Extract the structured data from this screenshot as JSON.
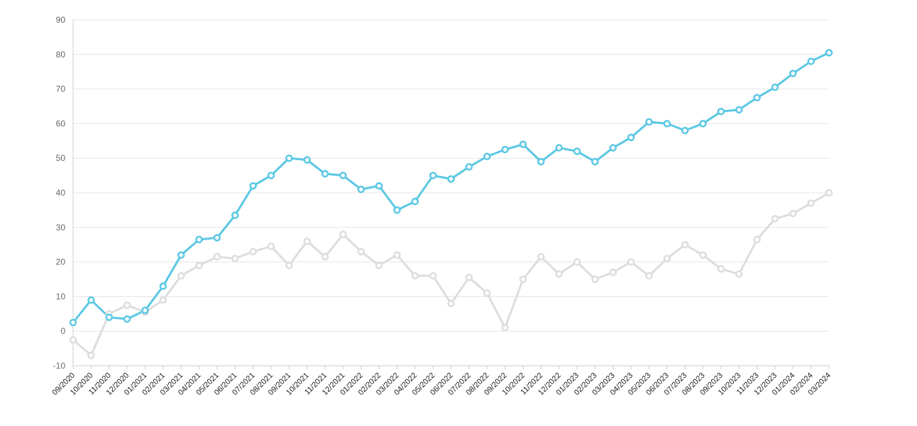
{
  "chart_data": {
    "type": "line",
    "title": "",
    "xlabel": "",
    "ylabel": "",
    "ylim": [
      -10,
      90
    ],
    "yticks": [
      -10,
      0,
      10,
      20,
      30,
      40,
      50,
      60,
      70,
      80,
      90
    ],
    "grid": true,
    "categories": [
      "09/2020",
      "10/2020",
      "11/2020",
      "12/2020",
      "01/2021",
      "02/2021",
      "03/2021",
      "04/2021",
      "05/2021",
      "06/2021",
      "07/2021",
      "08/2021",
      "09/2021",
      "10/2021",
      "11/2021",
      "12/2021",
      "01/2022",
      "02/2022",
      "03/2022",
      "04/2022",
      "05/2022",
      "06/2022",
      "07/2022",
      "08/2022",
      "09/2022",
      "10/2022",
      "11/2022",
      "12/2022",
      "01/2023",
      "02/2023",
      "03/2023",
      "04/2023",
      "05/2023",
      "06/2023",
      "07/2023",
      "08/2023",
      "09/2023",
      "10/2023",
      "11/2023",
      "12/2023",
      "01/2024",
      "02/2024",
      "03/2024"
    ],
    "series": [
      {
        "color": "#5bc8e3",
        "values": [
          2.5,
          9.0,
          4.0,
          3.5,
          6.0,
          13.0,
          22.0,
          26.5,
          27.0,
          33.5,
          42.0,
          45.0,
          50.0,
          49.5,
          45.5,
          45.0,
          41.0,
          42.0,
          35.0,
          37.5,
          45.0,
          44.0,
          47.5,
          50.5,
          52.5,
          54.0,
          49.0,
          53.0,
          52.0,
          49.0,
          53.0,
          56.0,
          60.5,
          60.0,
          58.0,
          60.0,
          63.5,
          64.0,
          67.5,
          70.5,
          74.5,
          78.0,
          80.5
        ]
      },
      {
        "color": "#dddddd",
        "values": [
          -2.5,
          -7.0,
          5.0,
          7.5,
          5.5,
          9.0,
          16.0,
          19.0,
          21.5,
          21.0,
          23.0,
          24.5,
          19.0,
          26.0,
          21.5,
          28.0,
          23.0,
          19.0,
          22.0,
          16.0,
          16.0,
          8.0,
          15.5,
          11.0,
          1.0,
          15.0,
          21.5,
          16.5,
          20.0,
          15.0,
          17.0,
          20.0,
          16.0,
          21.0,
          25.0,
          22.0,
          18.0,
          16.5,
          26.5,
          32.5,
          34.0,
          37.0,
          40.0
        ]
      }
    ]
  }
}
